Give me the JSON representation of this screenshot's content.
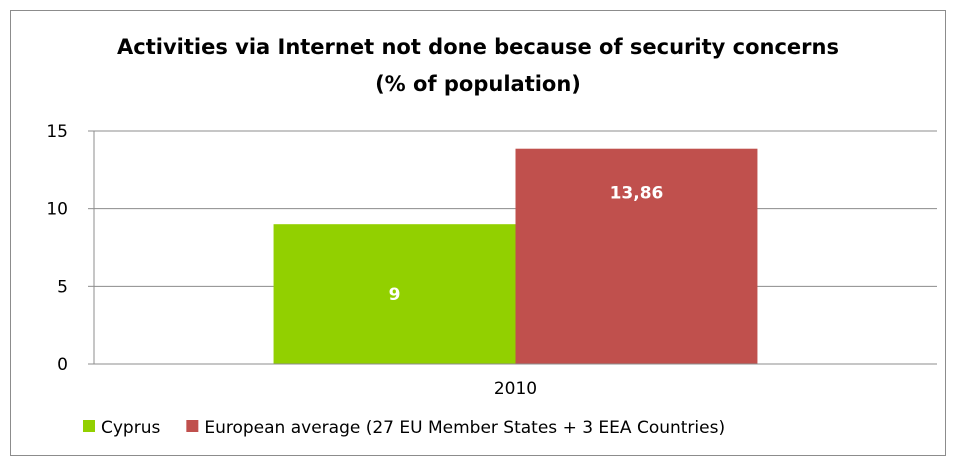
{
  "chart_data": {
    "type": "bar",
    "title_lines": [
      "Activities via Internet not done because of security concerns",
      "(% of population)"
    ],
    "categories": [
      "2010"
    ],
    "series": [
      {
        "name": "Cyprus",
        "values": [
          9
        ],
        "labels": [
          "9"
        ],
        "color": "#92d000"
      },
      {
        "name": "European average (27 EU Member States + 3 EEA Countries)",
        "values": [
          13.86
        ],
        "labels": [
          "13,86"
        ],
        "color": "#c0504d"
      }
    ],
    "ylim": [
      0,
      15
    ],
    "yticks": [
      0,
      5,
      10,
      15
    ],
    "grid": true,
    "legend_position": "bottom"
  }
}
